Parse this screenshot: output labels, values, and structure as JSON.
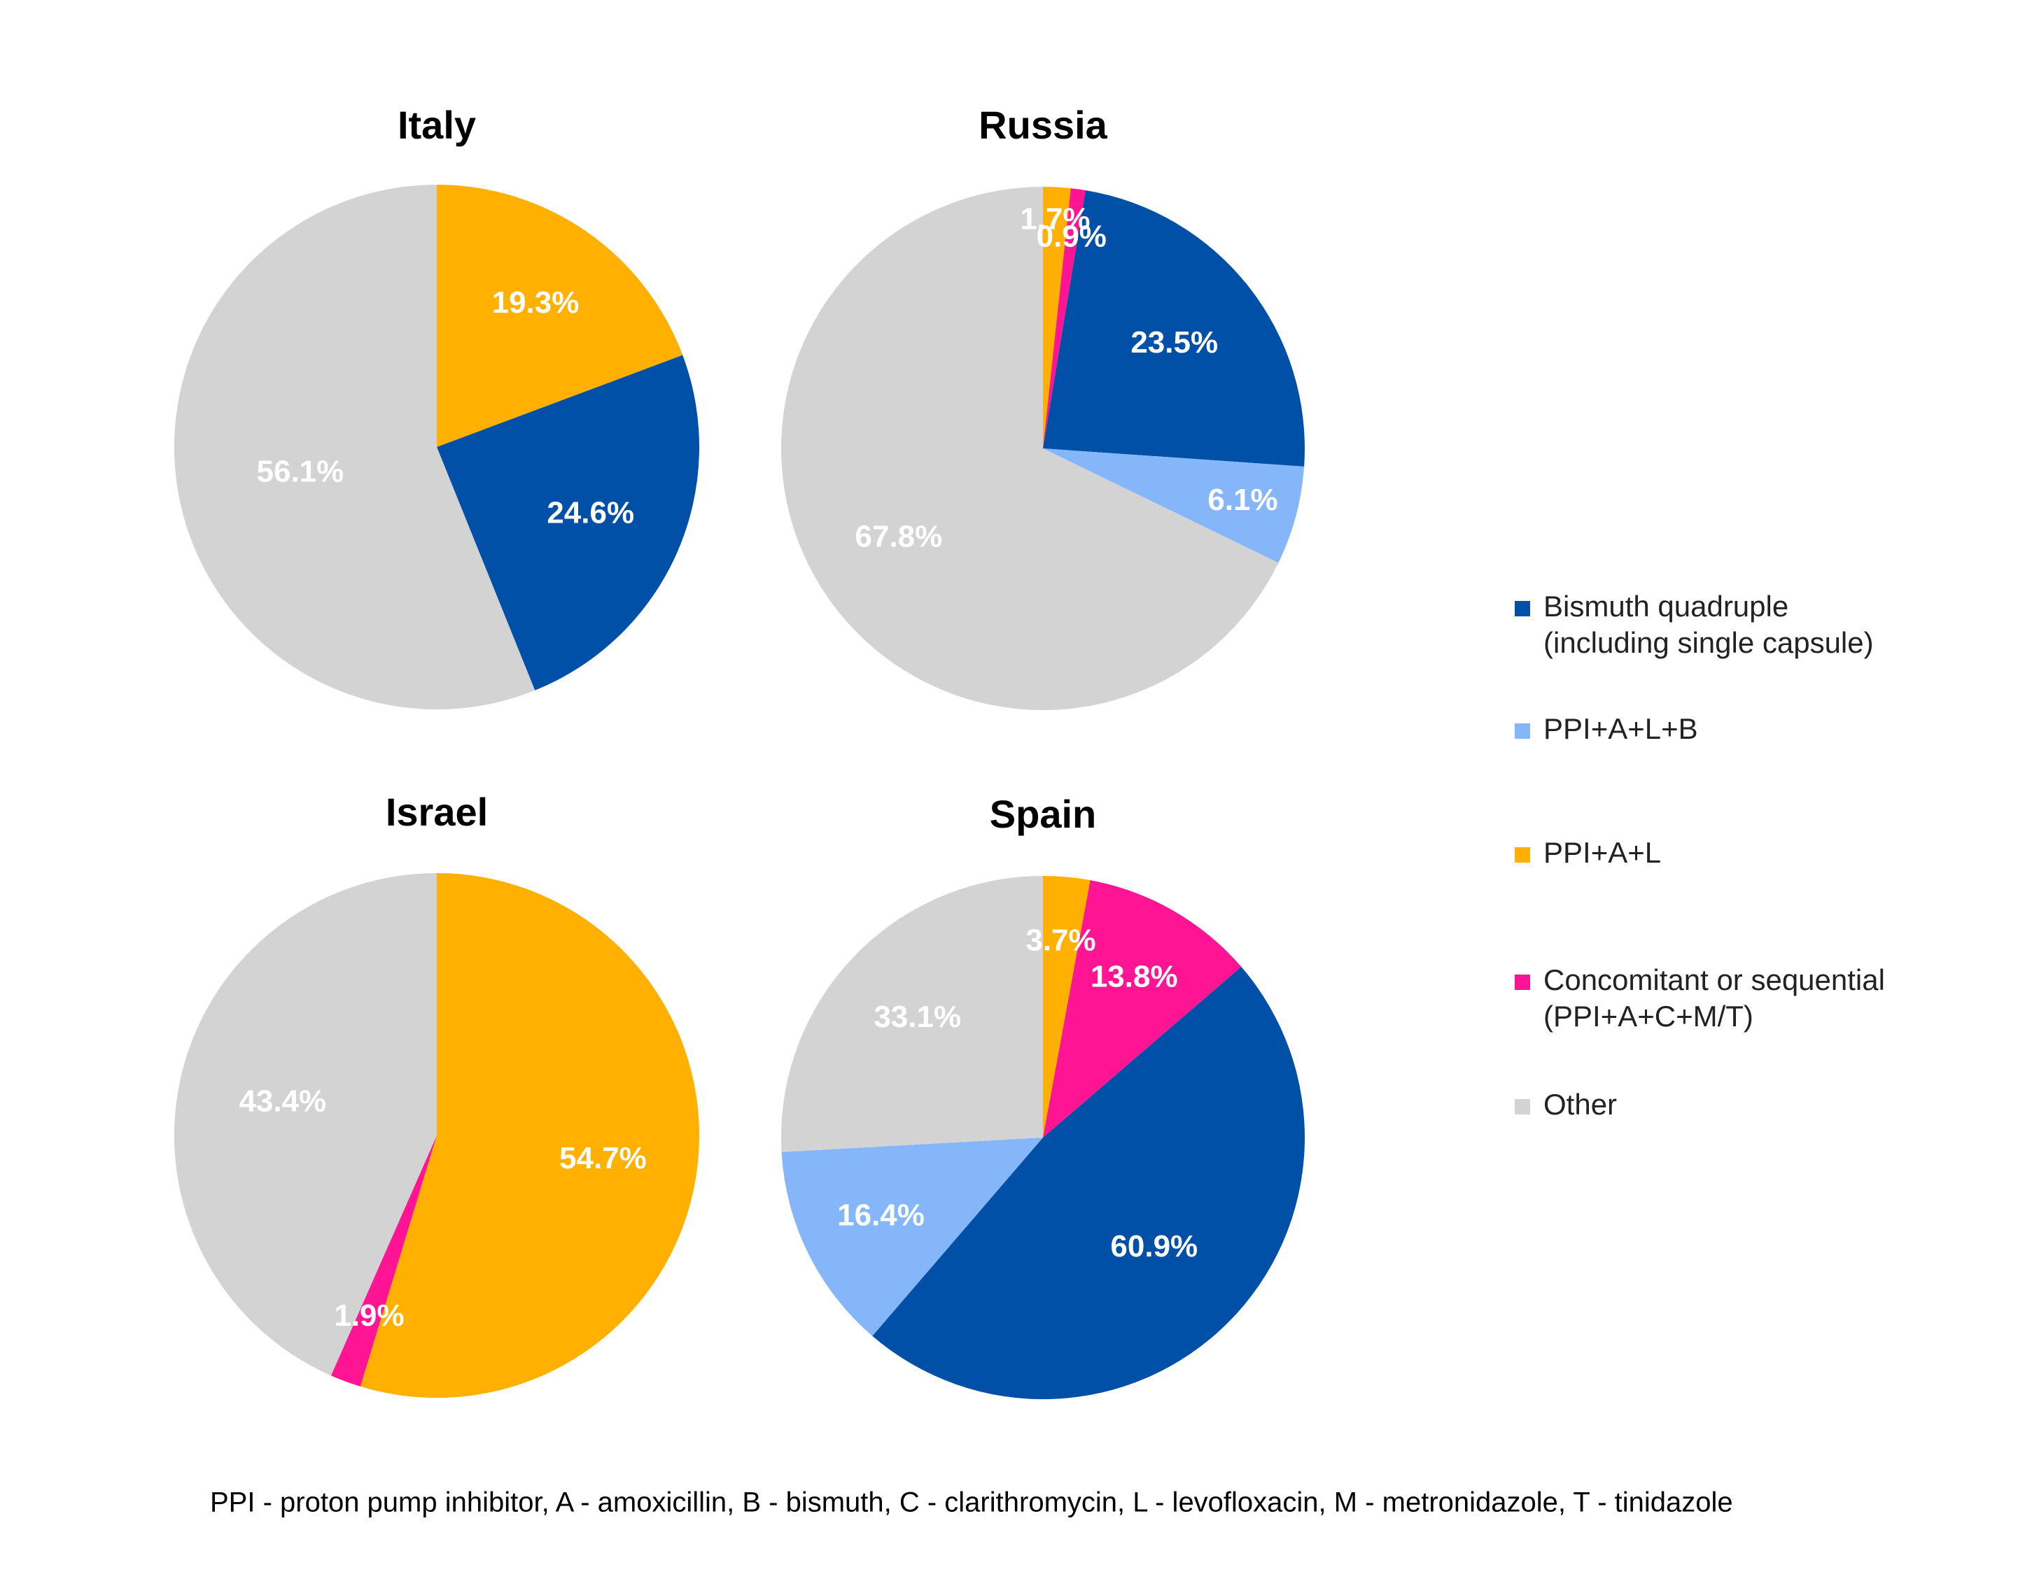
{
  "chart_data": [
    {
      "type": "pie",
      "title": "Italy",
      "slices": [
        {
          "name": "PPI+A+L",
          "value": 19.3,
          "label": "19.3%"
        },
        {
          "name": "Bismuth quadruple (including single capsule)",
          "value": 24.6,
          "label": "24.6%"
        },
        {
          "name": "Other",
          "value": 56.1,
          "label": "56.1%"
        }
      ]
    },
    {
      "type": "pie",
      "title": "Russia",
      "slices": [
        {
          "name": "PPI+A+L",
          "value": 1.7,
          "label": "1.7%"
        },
        {
          "name": "Concomitant or sequential (PPI+A+C+M/T)",
          "value": 0.9,
          "label": "0.9%"
        },
        {
          "name": "Bismuth quadruple (including single capsule)",
          "value": 23.5,
          "label": "23.5%"
        },
        {
          "name": "PPI+A+L+B",
          "value": 6.1,
          "label": "6.1%"
        },
        {
          "name": "Other",
          "value": 67.8,
          "label": "67.8%"
        }
      ]
    },
    {
      "type": "pie",
      "title": "Israel",
      "slices": [
        {
          "name": "PPI+A+L",
          "value": 54.7,
          "label": "54.7%"
        },
        {
          "name": "Concomitant or sequential (PPI+A+C+M/T)",
          "value": 1.9,
          "label": "1.9%"
        },
        {
          "name": "Other",
          "value": 43.4,
          "label": "43.4%"
        }
      ]
    },
    {
      "type": "pie",
      "title": "Spain",
      "slices": [
        {
          "name": "PPI+A+L",
          "value": 3.7,
          "label": "3.7%"
        },
        {
          "name": "Concomitant or sequential (PPI+A+C+M/T)",
          "value": 13.8,
          "label": "13.8%"
        },
        {
          "name": "Bismuth quadruple (including single capsule)",
          "value": 60.9,
          "label": "60.9%"
        },
        {
          "name": "PPI+A+L+B",
          "value": 16.4,
          "label": "16.4%"
        },
        {
          "name": "Other",
          "value": 33.1,
          "label": "33.1%"
        }
      ]
    }
  ],
  "legend": {
    "placement": "right",
    "items": [
      {
        "name": "Bismuth quadruple (including single capsule)",
        "lines": [
          "Bismuth quadruple",
          "(including single capsule)"
        ],
        "color": "#0050A8"
      },
      {
        "name": "PPI+A+L+B",
        "lines": [
          "PPI+A+L+B"
        ],
        "color": "#85B6FA"
      },
      {
        "name": "PPI+A+L",
        "lines": [
          "PPI+A+L"
        ],
        "color": "#FFB000"
      },
      {
        "name": "Concomitant or sequential (PPI+A+C+M/T)",
        "lines": [
          "Concomitant or sequential",
          "(PPI+A+C+M/T)"
        ],
        "color": "#FF1493"
      },
      {
        "name": "Other",
        "lines": [
          "Other"
        ],
        "color": "#D3D3D3"
      }
    ]
  },
  "footnote": "PPI - proton pump inhibitor, A - amoxicillin, B - bismuth, C - clarithromycin, L - levofloxacin, M - metronidazole, T - tinidazole"
}
